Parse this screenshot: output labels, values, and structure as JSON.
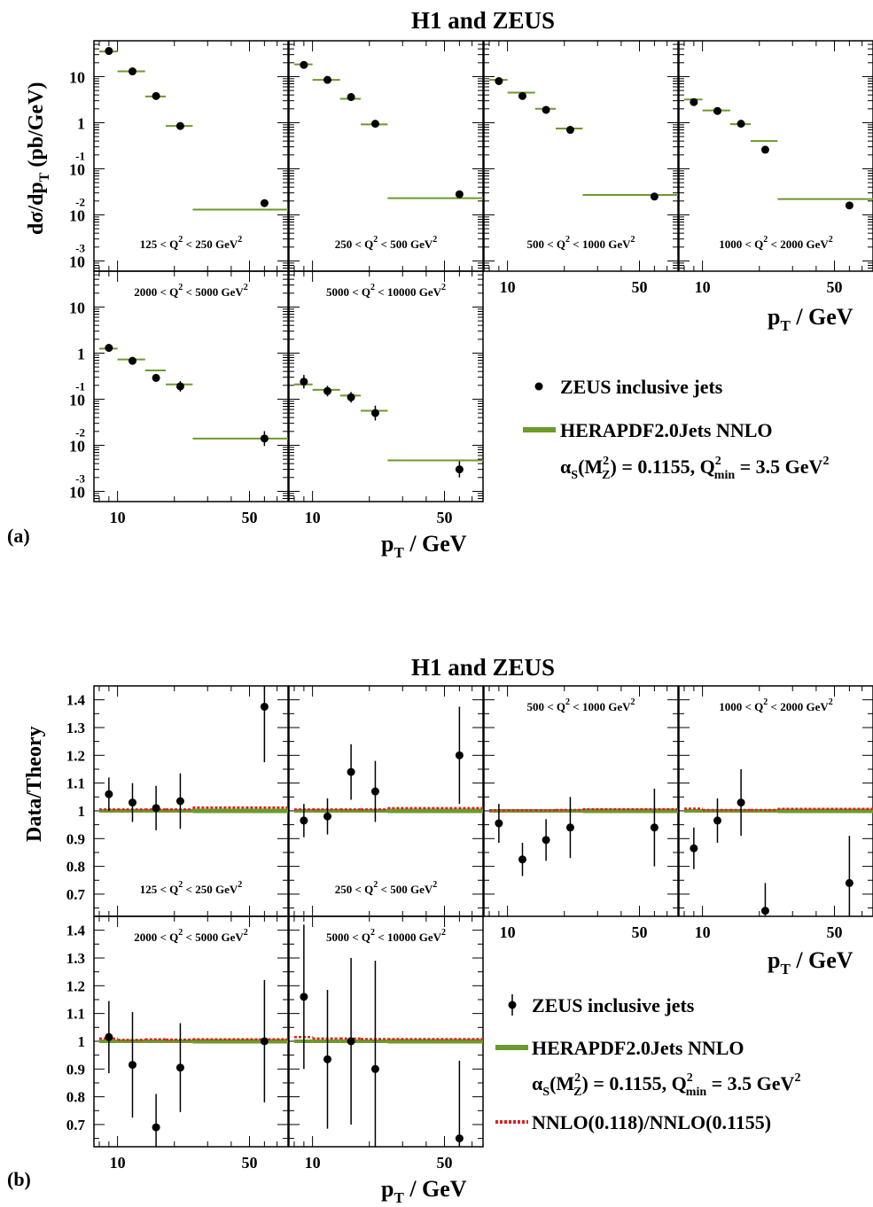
{
  "figure_a": {
    "title": "H1 and ZEUS",
    "ylabel": "dσ/dp",
    "ylabel_sub": "T",
    "ylabel_unit": " (pb/GeV)",
    "xlabel": "p",
    "xlabel_sub": "T",
    "xlabel_unit": " / GeV",
    "panel_label": "(a)",
    "y_ticks": [
      {
        "base": "10",
        "exp": "",
        "v": 10
      },
      {
        "base": "1",
        "exp": "",
        "v": 1
      },
      {
        "base": "10",
        "exp": "-1",
        "v": 0.1
      },
      {
        "base": "10",
        "exp": "-2",
        "v": 0.01
      },
      {
        "base": "10",
        "exp": "-3",
        "v": 0.001
      }
    ],
    "legend": {
      "data": "ZEUS inclusive jets",
      "theory": "HERAPDF2.0Jets NNLO",
      "alpha_pre": "α",
      "alpha_sub": "S",
      "alpha_mid": "(M",
      "alpha_mz": "Z",
      "alpha_val": ") = 0.1155, Q",
      "qmin_sub": "min",
      "qmin_val": " = 3.5 GeV"
    }
  },
  "figure_b": {
    "title": "H1 and ZEUS",
    "ylabel": "Data/Theory",
    "xlabel": "p",
    "xlabel_sub": "T",
    "xlabel_unit": " / GeV",
    "panel_label": "(b)",
    "y_ticks": [
      "0.7",
      "0.8",
      "0.9",
      "1",
      "1.1",
      "1.2",
      "1.3",
      "1.4"
    ],
    "legend": {
      "data": "ZEUS inclusive jets",
      "theory": "HERAPDF2.0Jets NNLO",
      "alpha_pre": "α",
      "alpha_sub": "S",
      "alpha_mid": "(M",
      "alpha_mz": "Z",
      "alpha_val": ") = 0.1155, Q",
      "qmin_sub": "min",
      "qmin_val": " = 3.5 GeV",
      "ratio": "NNLO(0.118)/NNLO(0.1155)"
    }
  },
  "x_ticks": [
    "10",
    "50"
  ],
  "colors": {
    "theory": "#6b9a2a",
    "ratio": "#e02020",
    "data": "#000000"
  },
  "chart_data": [
    {
      "type": "scatter",
      "title": "H1 and ZEUS",
      "xlabel": "p_T / GeV",
      "ylabel": "dσ/dp_T (pb/GeV)",
      "yscale": "log",
      "xscale": "log",
      "xlim": [
        7.5,
        80
      ],
      "ylim": [
        0.0006,
        60
      ],
      "bin_edges": [
        8,
        10,
        14,
        18,
        25,
        100
      ],
      "panels": [
        {
          "q2_lo": "125",
          "q2_hi": "250",
          "label_pos": "bottom",
          "x": [
            9,
            12,
            16,
            21.5,
            60
          ],
          "y": [
            36,
            13,
            3.8,
            0.85,
            0.018
          ],
          "err": [
            0,
            0,
            0,
            0,
            0
          ],
          "theory": [
            35,
            13,
            3.7,
            0.85,
            0.013
          ]
        },
        {
          "q2_lo": "250",
          "q2_hi": "500",
          "label_pos": "bottom",
          "x": [
            9,
            12,
            16,
            21.5,
            60
          ],
          "y": [
            18,
            8.5,
            3.6,
            0.95,
            0.028
          ],
          "err": [
            0,
            0,
            0,
            0,
            0
          ],
          "theory": [
            18.5,
            8.5,
            3.3,
            0.92,
            0.023
          ]
        },
        {
          "q2_lo": "500",
          "q2_hi": "1000",
          "label_pos": "bottom",
          "x": [
            9,
            12,
            16,
            21.5,
            60
          ],
          "y": [
            8,
            3.8,
            1.9,
            0.7,
            0.025
          ],
          "err": [
            0,
            0,
            0,
            0,
            0
          ],
          "theory": [
            8.5,
            4.5,
            2.0,
            0.75,
            0.027
          ]
        },
        {
          "q2_lo": "1000",
          "q2_hi": "2000",
          "label_pos": "bottom",
          "x": [
            9,
            12,
            16,
            21.5,
            60
          ],
          "y": [
            2.8,
            1.8,
            0.95,
            0.26,
            0.016
          ],
          "err": [
            0,
            0,
            0,
            0,
            0.15
          ],
          "theory": [
            3.2,
            1.85,
            0.93,
            0.4,
            0.022
          ]
        },
        {
          "q2_lo": "2000",
          "q2_hi": "5000",
          "label_pos": "top",
          "x": [
            9,
            12,
            16,
            21.5,
            60
          ],
          "y": [
            1.3,
            0.68,
            0.29,
            0.19,
            0.014
          ],
          "err": [
            0.15,
            0.1,
            0.15,
            0.3,
            0.45
          ],
          "theory": [
            1.25,
            0.73,
            0.42,
            0.21,
            0.014
          ]
        },
        {
          "q2_lo": "5000",
          "q2_hi": "10000",
          "label_pos": "top",
          "x": [
            9,
            12,
            16,
            21.5,
            60
          ],
          "y": [
            0.24,
            0.15,
            0.11,
            0.05,
            0.003
          ],
          "err": [
            0.4,
            0.3,
            0.3,
            0.45,
            0.5
          ],
          "theory": [
            0.21,
            0.16,
            0.12,
            0.056,
            0.0047
          ]
        }
      ]
    },
    {
      "type": "scatter",
      "title": "H1 and ZEUS",
      "xlabel": "p_T / GeV",
      "ylabel": "Data/Theory",
      "xscale": "log",
      "xlim": [
        7.5,
        80
      ],
      "ylim": [
        0.62,
        1.45
      ],
      "bin_edges": [
        8,
        10,
        14,
        18,
        25,
        100
      ],
      "panels": [
        {
          "q2_lo": "125",
          "q2_hi": "250",
          "label_pos": "bottom",
          "x": [
            9,
            12,
            16,
            21.5,
            60
          ],
          "y": [
            1.06,
            1.03,
            1.01,
            1.035,
            1.375
          ],
          "err": [
            0.06,
            0.07,
            0.08,
            0.1,
            0.2
          ],
          "ratio": [
            1.005,
            1.005,
            1.005,
            1.005,
            1.012
          ]
        },
        {
          "q2_lo": "250",
          "q2_hi": "500",
          "label_pos": "bottom",
          "x": [
            9,
            12,
            16,
            21.5,
            60
          ],
          "y": [
            0.965,
            0.98,
            1.14,
            1.07,
            1.2
          ],
          "err": [
            0.06,
            0.065,
            0.1,
            0.11,
            0.175
          ],
          "ratio": [
            1.005,
            1.005,
            1.005,
            1.005,
            1.01
          ]
        },
        {
          "q2_lo": "500",
          "q2_hi": "1000",
          "label_pos": "top",
          "x": [
            9,
            12,
            16,
            21.5,
            60
          ],
          "y": [
            0.955,
            0.825,
            0.895,
            0.94,
            0.94
          ],
          "err": [
            0.07,
            0.06,
            0.075,
            0.11,
            0.14
          ],
          "ratio": [
            1.002,
            1.002,
            1.002,
            1.003,
            1.006
          ]
        },
        {
          "q2_lo": "1000",
          "q2_hi": "2000",
          "label_pos": "top",
          "x": [
            9,
            12,
            16,
            21.5,
            60
          ],
          "y": [
            0.865,
            0.965,
            1.03,
            0.64,
            0.74
          ],
          "err": [
            0.075,
            0.08,
            0.12,
            0.1,
            0.17
          ],
          "ratio": [
            1.008,
            1.003,
            1.003,
            1.003,
            1.007
          ]
        },
        {
          "q2_lo": "2000",
          "q2_hi": "5000",
          "label_pos": "top",
          "x": [
            9,
            12,
            16,
            21.5,
            60
          ],
          "y": [
            1.015,
            0.915,
            0.69,
            0.905,
            1.0
          ],
          "err": [
            0.13,
            0.19,
            0.12,
            0.16,
            0.22
          ],
          "ratio": [
            1.01,
            1.005,
            1.007,
            1.006,
            1.007
          ]
        },
        {
          "q2_lo": "5000",
          "q2_hi": "10000",
          "label_pos": "top",
          "x": [
            9,
            12,
            16,
            21.5,
            60
          ],
          "y": [
            1.16,
            0.935,
            1.0,
            0.9,
            0.65
          ],
          "err": [
            0.26,
            0.25,
            0.3,
            0.39,
            0.28
          ],
          "ratio": [
            1.015,
            1.01,
            1.01,
            1.008,
            1.008
          ]
        }
      ]
    }
  ]
}
